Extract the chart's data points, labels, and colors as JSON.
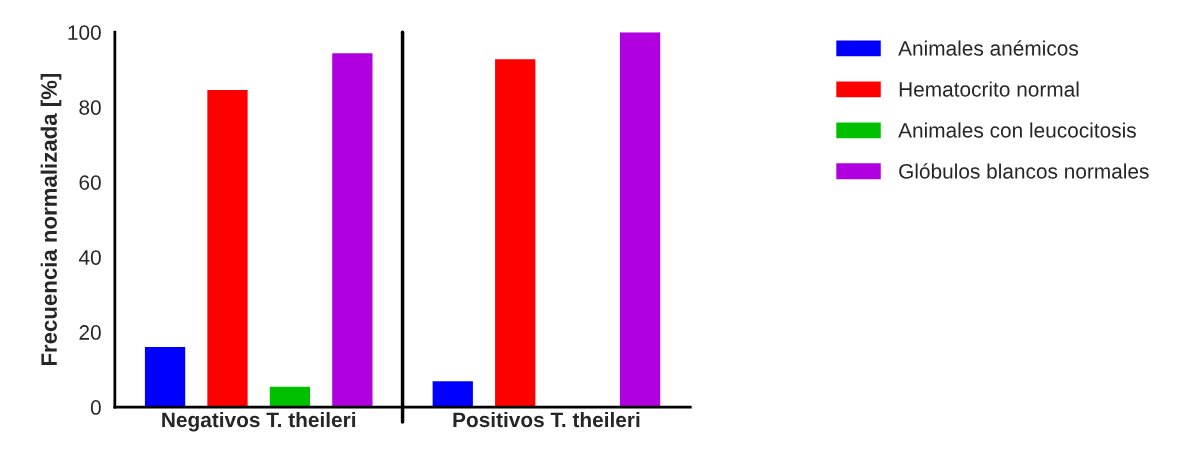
{
  "chart_data": {
    "type": "bar",
    "ylabel": "Frecuencia normalizada [%]",
    "categories": [
      "Negativos T. theileri",
      "Positivos T. theileri"
    ],
    "series": [
      {
        "name": "Animales anémicos",
        "color": "#0000ff",
        "values": [
          16,
          6.9
        ]
      },
      {
        "name": "Hematocrito normal",
        "color": "#ff0000",
        "values": [
          84.6,
          92.8
        ]
      },
      {
        "name": "Animales con leucocitosis",
        "color": "#00c000",
        "values": [
          5.4,
          0
        ]
      },
      {
        "name": "Glóbulos blancos normales",
        "color": "#b000e0",
        "values": [
          94.4,
          100
        ]
      }
    ],
    "ylim": [
      0,
      100
    ],
    "yticks": [
      0,
      20,
      40,
      60,
      80,
      100
    ],
    "grid": false,
    "legend": "right"
  }
}
